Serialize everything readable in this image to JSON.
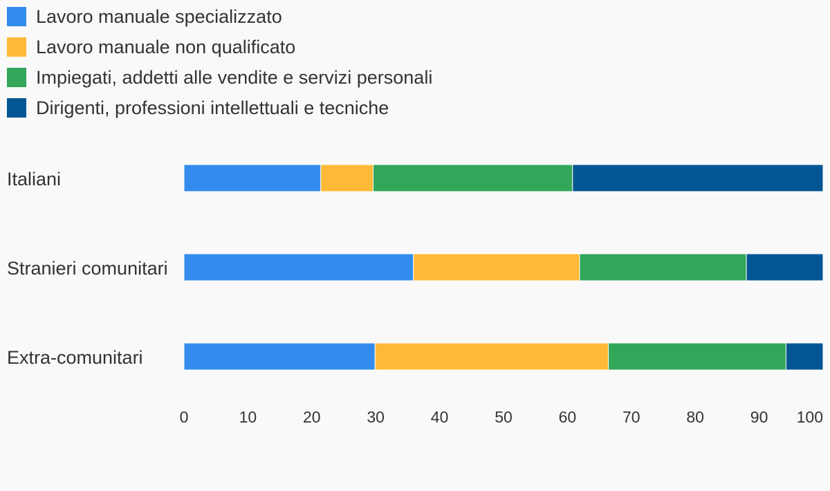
{
  "chart_data": {
    "type": "bar",
    "orientation": "horizontal",
    "stacked": true,
    "categories": [
      "Italiani",
      "Stranieri comunitari",
      "Extra-comunitari"
    ],
    "series": [
      {
        "name": "Lavoro manuale specializzato",
        "color": "#338ced",
        "values": [
          21.4,
          35.9,
          29.9
        ]
      },
      {
        "name": "Lavoro manuale non qualificato",
        "color": "#ffb938",
        "values": [
          8.2,
          26.0,
          36.5
        ]
      },
      {
        "name": "Impiegati, addetti alle vendite e servizi personali",
        "color": "#33a65a",
        "values": [
          31.2,
          26.1,
          27.8
        ]
      },
      {
        "name": "Dirigenti, professioni intellettuali e tecniche",
        "color": "#015693",
        "values": [
          39.2,
          12.0,
          5.8
        ]
      }
    ],
    "xlim": [
      0,
      100
    ],
    "xticks": [
      "0",
      "10",
      "20",
      "30",
      "40",
      "50",
      "60",
      "70",
      "80",
      "90",
      "100"
    ],
    "legend_position": "top-left",
    "grid": false
  }
}
